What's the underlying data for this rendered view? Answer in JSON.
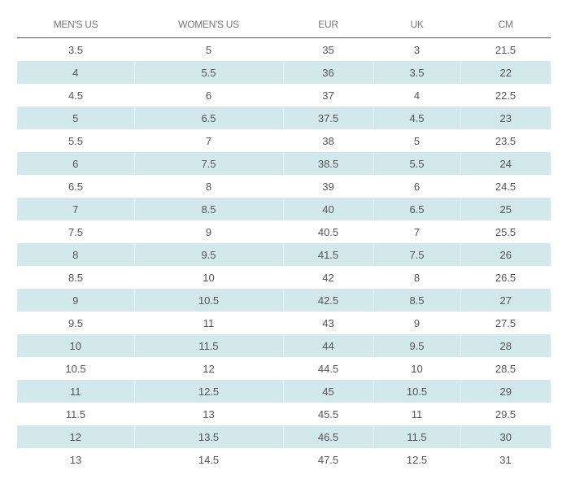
{
  "table": {
    "columns": [
      "MEN'S US",
      "WOMEN'S US",
      "EUR",
      "UK",
      "CM"
    ],
    "rows": [
      [
        "3.5",
        "5",
        "35",
        "3",
        "21.5"
      ],
      [
        "4",
        "5.5",
        "36",
        "3.5",
        "22"
      ],
      [
        "4.5",
        "6",
        "37",
        "4",
        "22.5"
      ],
      [
        "5",
        "6.5",
        "37.5",
        "4.5",
        "23"
      ],
      [
        "5.5",
        "7",
        "38",
        "5",
        "23.5"
      ],
      [
        "6",
        "7.5",
        "38.5",
        "5.5",
        "24"
      ],
      [
        "6.5",
        "8",
        "39",
        "6",
        "24.5"
      ],
      [
        "7",
        "8.5",
        "40",
        "6.5",
        "25"
      ],
      [
        "7.5",
        "9",
        "40.5",
        "7",
        "25.5"
      ],
      [
        "8",
        "9.5",
        "41.5",
        "7.5",
        "26"
      ],
      [
        "8.5",
        "10",
        "42",
        "8",
        "26.5"
      ],
      [
        "9",
        "10.5",
        "42.5",
        "8.5",
        "27"
      ],
      [
        "9.5",
        "11",
        "43",
        "9",
        "27.5"
      ],
      [
        "10",
        "11.5",
        "44",
        "9.5",
        "28"
      ],
      [
        "10.5",
        "12",
        "44.5",
        "10",
        "28.5"
      ],
      [
        "11",
        "12.5",
        "45",
        "10.5",
        "29"
      ],
      [
        "11.5",
        "13",
        "45.5",
        "11",
        "29.5"
      ],
      [
        "12",
        "13.5",
        "46.5",
        "11.5",
        "30"
      ],
      [
        "13",
        "14.5",
        "47.5",
        "12.5",
        "31"
      ]
    ]
  }
}
